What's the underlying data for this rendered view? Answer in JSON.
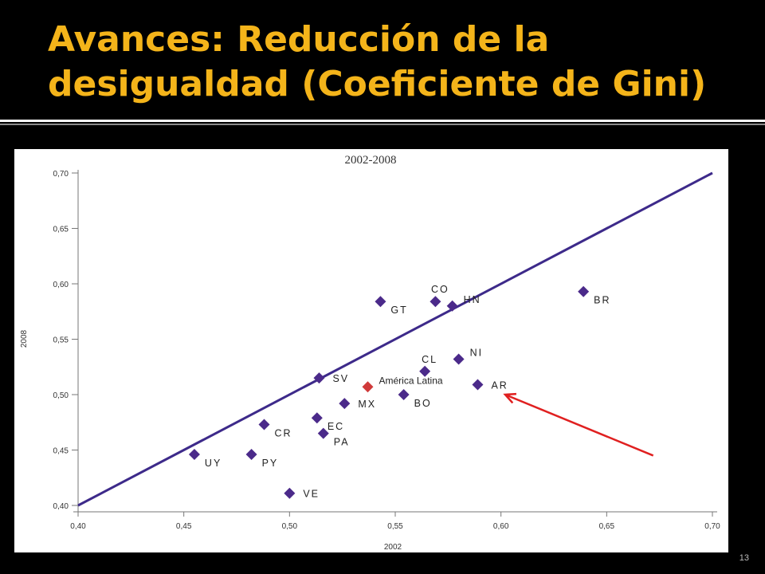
{
  "slide": {
    "title": "Avances: Reducción de la desigualdad (Coeficiente de Gini)",
    "page_number": "13"
  },
  "colors": {
    "title": "#f4b41a",
    "series": "#4b2a8a",
    "highlight": "#d03a3a",
    "arrow": "#e02020",
    "line": "#3d2a8a"
  },
  "chart_data": {
    "type": "scatter",
    "title": "2002-2008",
    "xlabel": "2002",
    "ylabel": "2008",
    "xlim": [
      0.4,
      0.7
    ],
    "ylim": [
      0.4,
      0.7
    ],
    "x_ticks": [
      "0,40",
      "0,45",
      "0,50",
      "0,55",
      "0,60",
      "0,65",
      "0,70"
    ],
    "y_ticks": [
      "0,40",
      "0,45",
      "0,50",
      "0,55",
      "0,60",
      "0,65",
      "0,70"
    ],
    "reference_line": {
      "from": [
        0.4,
        0.4
      ],
      "to": [
        0.7,
        0.7
      ]
    },
    "points": [
      {
        "label": "UY",
        "x": 0.455,
        "y": 0.446,
        "label_pos": "right-below"
      },
      {
        "label": "PY",
        "x": 0.482,
        "y": 0.446,
        "label_pos": "right-below"
      },
      {
        "label": "CR",
        "x": 0.488,
        "y": 0.473,
        "label_pos": "right-below"
      },
      {
        "label": "VE",
        "x": 0.5,
        "y": 0.411,
        "label_pos": "right"
      },
      {
        "label": "EC",
        "x": 0.513,
        "y": 0.479,
        "label_pos": "right-below"
      },
      {
        "label": "PA",
        "x": 0.516,
        "y": 0.465,
        "label_pos": "right-below"
      },
      {
        "label": "SV",
        "x": 0.514,
        "y": 0.515,
        "label_pos": "right"
      },
      {
        "label": "MX",
        "x": 0.526,
        "y": 0.492,
        "label_pos": "right"
      },
      {
        "label": "América Latina",
        "x": 0.537,
        "y": 0.507,
        "label_pos": "right-above",
        "highlight": true
      },
      {
        "label": "BO",
        "x": 0.554,
        "y": 0.5,
        "label_pos": "right-below"
      },
      {
        "label": "GT",
        "x": 0.543,
        "y": 0.584,
        "label_pos": "right-below"
      },
      {
        "label": "CO",
        "x": 0.569,
        "y": 0.584,
        "label_pos": "above"
      },
      {
        "label": "HN",
        "x": 0.577,
        "y": 0.58,
        "label_pos": "right-above"
      },
      {
        "label": "CL",
        "x": 0.564,
        "y": 0.521,
        "label_pos": "above"
      },
      {
        "label": "NI",
        "x": 0.58,
        "y": 0.532,
        "label_pos": "right-above"
      },
      {
        "label": "AR",
        "x": 0.589,
        "y": 0.509,
        "label_pos": "right"
      },
      {
        "label": "BR",
        "x": 0.639,
        "y": 0.593,
        "label_pos": "right-below"
      }
    ],
    "annotation_arrow": {
      "from": [
        0.672,
        0.445
      ],
      "to": [
        0.602,
        0.5
      ]
    }
  }
}
